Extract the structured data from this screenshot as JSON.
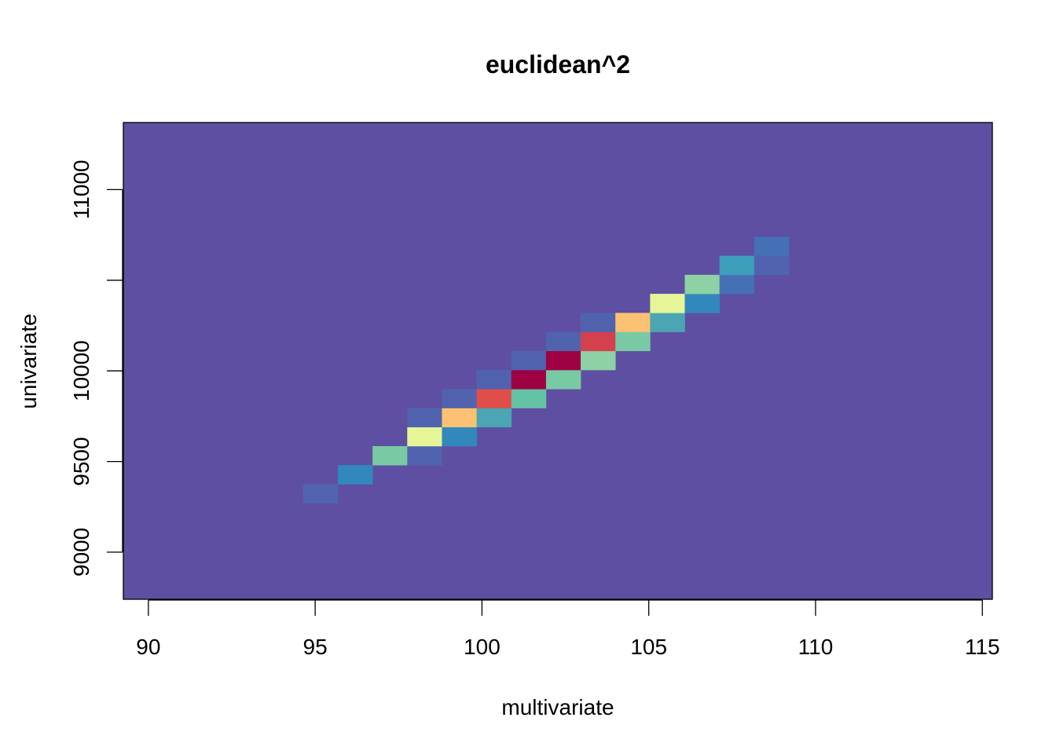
{
  "chart_data": {
    "type": "heatmap",
    "title": "euclidean^2",
    "xlabel": "multivariate",
    "ylabel": "univariate",
    "xlim": [
      89.25,
      115.3
    ],
    "ylim": [
      8740,
      11370
    ],
    "x_ticks": [
      90,
      95,
      100,
      105,
      110,
      115
    ],
    "y_ticks": [
      9000,
      9500,
      10000,
      10500,
      11000
    ],
    "y_tick_labels": [
      "9000",
      "9500",
      "10000",
      "",
      "11000"
    ],
    "background_color": "#5E4FA2",
    "bin_width_x": 1.04,
    "bin_height_y": 105,
    "cells": [
      {
        "x": 94.64,
        "y": 9270,
        "color": "#5264AF"
      },
      {
        "x": 95.68,
        "y": 9375,
        "color": "#3288BD"
      },
      {
        "x": 96.72,
        "y": 9480,
        "color": "#79C9A4"
      },
      {
        "x": 97.76,
        "y": 9480,
        "color": "#5163AF"
      },
      {
        "x": 97.76,
        "y": 9585,
        "color": "#E6F598"
      },
      {
        "x": 98.8,
        "y": 9585,
        "color": "#3288BD"
      },
      {
        "x": 97.76,
        "y": 9690,
        "color": "#5163AF"
      },
      {
        "x": 98.8,
        "y": 9690,
        "color": "#FDC173"
      },
      {
        "x": 99.84,
        "y": 9690,
        "color": "#4BA5B2"
      },
      {
        "x": 98.8,
        "y": 9795,
        "color": "#5163AF"
      },
      {
        "x": 99.84,
        "y": 9795,
        "color": "#E04E4A"
      },
      {
        "x": 100.88,
        "y": 9795,
        "color": "#64C2A5"
      },
      {
        "x": 99.84,
        "y": 9900,
        "color": "#5163AF"
      },
      {
        "x": 100.88,
        "y": 9900,
        "color": "#9E0142"
      },
      {
        "x": 101.92,
        "y": 9900,
        "color": "#79C9A4"
      },
      {
        "x": 100.88,
        "y": 10005,
        "color": "#5163AF"
      },
      {
        "x": 101.92,
        "y": 10005,
        "color": "#9E0142"
      },
      {
        "x": 102.96,
        "y": 10005,
        "color": "#8DD1A4"
      },
      {
        "x": 101.92,
        "y": 10110,
        "color": "#5163AF"
      },
      {
        "x": 102.96,
        "y": 10110,
        "color": "#D5404E"
      },
      {
        "x": 104.0,
        "y": 10110,
        "color": "#79C9A4"
      },
      {
        "x": 102.96,
        "y": 10215,
        "color": "#5163AF"
      },
      {
        "x": 104.0,
        "y": 10215,
        "color": "#FDC173"
      },
      {
        "x": 105.04,
        "y": 10215,
        "color": "#4BA5B2"
      },
      {
        "x": 105.04,
        "y": 10320,
        "color": "#E6F598"
      },
      {
        "x": 106.08,
        "y": 10320,
        "color": "#3288BD"
      },
      {
        "x": 106.08,
        "y": 10425,
        "color": "#8DD1A4"
      },
      {
        "x": 107.12,
        "y": 10425,
        "color": "#4570B5"
      },
      {
        "x": 107.12,
        "y": 10530,
        "color": "#3D9FB9"
      },
      {
        "x": 108.16,
        "y": 10530,
        "color": "#5163AF"
      },
      {
        "x": 108.16,
        "y": 10635,
        "color": "#4570B5"
      }
    ]
  }
}
